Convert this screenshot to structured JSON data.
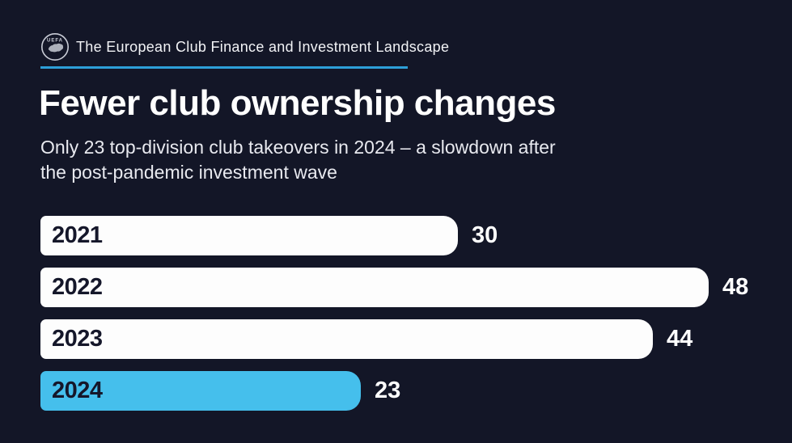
{
  "header": {
    "logo_icon": "uefa-logo",
    "title": "The European Club Finance and Investment Landscape"
  },
  "title": "Fewer club ownership changes",
  "subtitle": {
    "line1": "Only 23 top-division club takeovers in 2024 – a slowdown after",
    "line2": "the post-pandemic investment wave"
  },
  "colors": {
    "background": "#131627",
    "accent_line": "#2d9fd8",
    "bar_default": "#fdfdfd",
    "bar_highlight": "#45bfec",
    "bar_year_label": "#15172a",
    "value_label": "#ffffff"
  },
  "chart_data": {
    "type": "bar",
    "orientation": "horizontal",
    "title": "Fewer club ownership changes",
    "subtitle": "Only 23 top-division club takeovers in 2024 – a slowdown after the post-pandemic investment wave",
    "categories": [
      "2021",
      "2022",
      "2023",
      "2024"
    ],
    "values": [
      30,
      48,
      44,
      23
    ],
    "highlight_category": "2024",
    "xlim": [
      0,
      48
    ],
    "grid": false,
    "legend": false,
    "category_labels_position": "inside-start",
    "value_labels_position": "outside-end"
  }
}
